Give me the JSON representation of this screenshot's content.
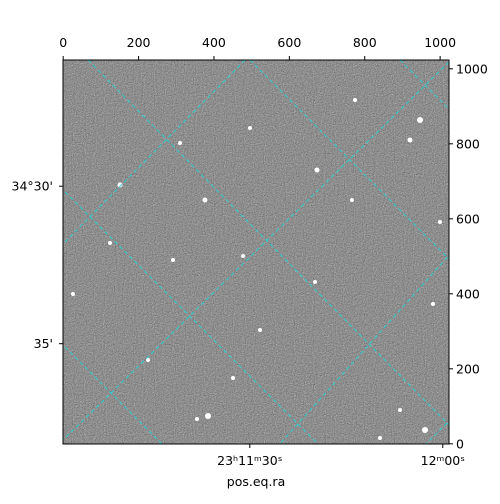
{
  "chart_data": {
    "type": "image",
    "xlabel": "pos.eq.ra",
    "xlim": [
      -0.5,
      1023.5
    ],
    "ylim": [
      -0.5,
      1023.5
    ],
    "xticks": [
      0,
      200,
      400,
      600,
      800,
      1000
    ],
    "yticks": [
      0,
      200,
      400,
      600,
      800,
      1000
    ],
    "ra_ticks": [
      {
        "value": 495,
        "label": "23ʰ11ᵐ30ˢ"
      },
      {
        "value": 1007,
        "label": "12ᵐ00ˢ"
      }
    ],
    "dec_ticks": [
      {
        "value": 687,
        "label": "34°30'"
      },
      {
        "value": 267,
        "label": "35'"
      }
    ]
  }
}
